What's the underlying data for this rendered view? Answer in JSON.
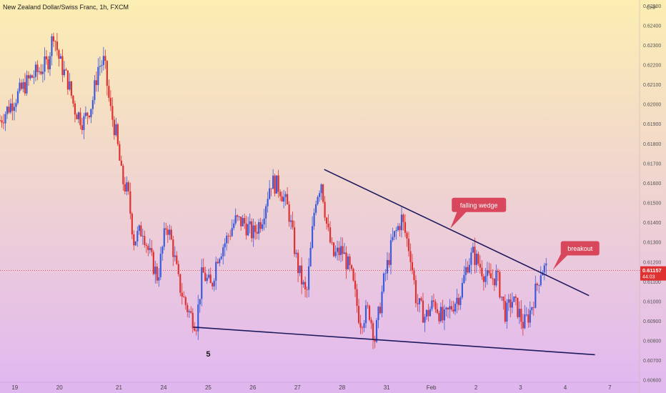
{
  "chart_data": {
    "type": "candlestick",
    "title": "New Zealand Dollar/Swiss Franc, 1h, FXCM",
    "currency": "CHF",
    "y_ticks": [
      0.625,
      0.624,
      0.623,
      0.622,
      0.621,
      0.62,
      0.619,
      0.618,
      0.617,
      0.616,
      0.615,
      0.614,
      0.613,
      0.612,
      0.611,
      0.61,
      0.609,
      0.608,
      0.607,
      0.606
    ],
    "y_tick_labels": [
      "0.62500",
      "0.62400",
      "0.62300",
      "0.62200",
      "0.62100",
      "0.62000",
      "0.61900",
      "0.61800",
      "0.61700",
      "0.61600",
      "0.61500",
      "0.61400",
      "0.61300",
      "0.61200",
      "0.61100",
      "0.61000",
      "0.60900",
      "0.60800",
      "0.60700",
      "0.60600"
    ],
    "ylim": [
      0.6059,
      0.6253
    ],
    "x_labels": [
      "19",
      "20",
      "21",
      "24",
      "25",
      "26",
      "27",
      "28",
      "31",
      "Feb",
      "2",
      "3",
      "4",
      "7"
    ],
    "x_label_pos": [
      0.5,
      2,
      4,
      5.5,
      7,
      8.5,
      10,
      11.5,
      13,
      14.5,
      16,
      17.5,
      19,
      20.5
    ],
    "xlim": [
      0,
      21.5
    ],
    "price_path": [
      [
        0,
        0.6192
      ],
      [
        0.5,
        0.6203
      ],
      [
        1.0,
        0.6213
      ],
      [
        1.3,
        0.6217
      ],
      [
        1.6,
        0.6221
      ],
      [
        1.8,
        0.6237
      ],
      [
        2.0,
        0.6222
      ],
      [
        2.3,
        0.6211
      ],
      [
        2.5,
        0.6198
      ],
      [
        2.8,
        0.6191
      ],
      [
        3.1,
        0.6201
      ],
      [
        3.3,
        0.6219
      ],
      [
        3.5,
        0.6222
      ],
      [
        3.7,
        0.6198
      ],
      [
        3.9,
        0.6185
      ],
      [
        4.1,
        0.6162
      ],
      [
        4.3,
        0.6155
      ],
      [
        4.5,
        0.6131
      ],
      [
        4.8,
        0.6137
      ],
      [
        5.0,
        0.6125
      ],
      [
        5.3,
        0.6112
      ],
      [
        5.6,
        0.614
      ],
      [
        5.8,
        0.6128
      ],
      [
        6.0,
        0.611
      ],
      [
        6.2,
        0.61
      ],
      [
        6.4,
        0.6093
      ],
      [
        6.6,
        0.6089
      ],
      [
        6.8,
        0.6115
      ],
      [
        7.1,
        0.6107
      ],
      [
        7.3,
        0.6123
      ],
      [
        7.6,
        0.6131
      ],
      [
        7.9,
        0.6141
      ],
      [
        8.2,
        0.614
      ],
      [
        8.5,
        0.6134
      ],
      [
        8.8,
        0.6142
      ],
      [
        9.1,
        0.6161
      ],
      [
        9.4,
        0.6158
      ],
      [
        9.7,
        0.6146
      ],
      [
        10.0,
        0.6118
      ],
      [
        10.3,
        0.6102
      ],
      [
        10.6,
        0.6152
      ],
      [
        10.8,
        0.6161
      ],
      [
        11.0,
        0.6137
      ],
      [
        11.2,
        0.6123
      ],
      [
        11.5,
        0.6126
      ],
      [
        11.8,
        0.6114
      ],
      [
        12.1,
        0.609
      ],
      [
        12.4,
        0.6096
      ],
      [
        12.6,
        0.6081
      ],
      [
        12.9,
        0.611
      ],
      [
        13.2,
        0.6131
      ],
      [
        13.5,
        0.6142
      ],
      [
        13.8,
        0.6124
      ],
      [
        14.0,
        0.61
      ],
      [
        14.3,
        0.6092
      ],
      [
        14.6,
        0.61
      ],
      [
        14.9,
        0.609
      ],
      [
        15.2,
        0.6098
      ],
      [
        15.5,
        0.6105
      ],
      [
        15.7,
        0.6119
      ],
      [
        15.9,
        0.6124
      ],
      [
        16.1,
        0.6119
      ],
      [
        16.4,
        0.6111
      ],
      [
        16.7,
        0.6113
      ],
      [
        17.0,
        0.6093
      ],
      [
        17.2,
        0.6101
      ],
      [
        17.4,
        0.6096
      ],
      [
        17.6,
        0.6088
      ],
      [
        17.8,
        0.6094
      ],
      [
        18.0,
        0.6105
      ],
      [
        18.2,
        0.6117
      ],
      [
        18.4,
        0.6116
      ]
    ],
    "wedge_upper_line": [
      [
        10.9,
        0.6167
      ],
      [
        19.8,
        0.6103
      ]
    ],
    "wedge_lower_line": [
      [
        6.5,
        0.6087
      ],
      [
        20.0,
        0.6073
      ]
    ],
    "current_price": 0.61157,
    "current_price_label": "0.61157",
    "countdown_label": "44:03",
    "annotations": [
      {
        "text": "falling wedge",
        "x": 16.1,
        "y": 0.6149
      },
      {
        "text": "breakout",
        "x": 19.5,
        "y": 0.6127
      },
      {
        "text": "5",
        "x": 7.0,
        "y": 0.6075
      }
    ],
    "background_top": "#fceeb2",
    "background_bottom": "#e2b8f0",
    "up_color": "#3b5bdb",
    "down_color": "#e03131",
    "trendline_color": "#1e1a5e",
    "label_box_color": "#d9475c"
  }
}
